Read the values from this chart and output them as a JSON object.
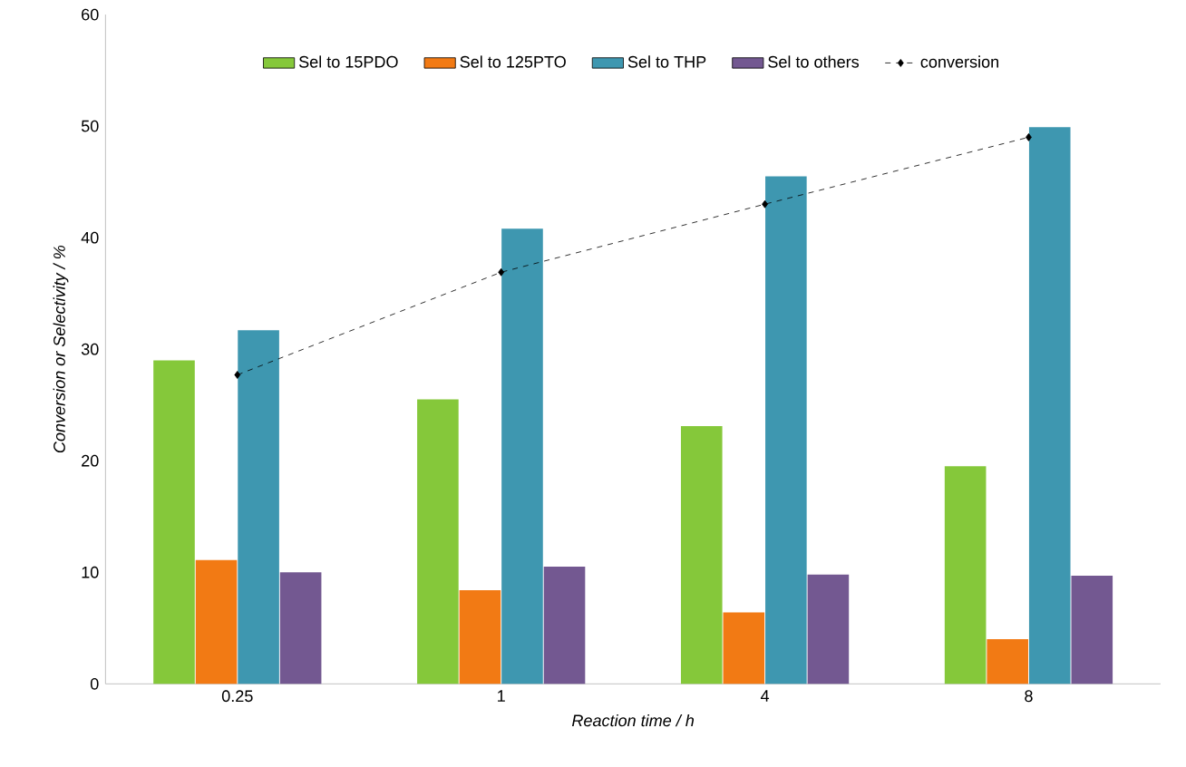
{
  "chart_data": {
    "type": "bar",
    "xlabel": "Reaction time / h",
    "ylabel": "Conversion or Selectivity / %",
    "categories": [
      "0.25",
      "1",
      "4",
      "8"
    ],
    "ylim": [
      0,
      60
    ],
    "yticks": [
      0,
      10,
      20,
      30,
      40,
      50,
      60
    ],
    "legend": "top",
    "grid": false,
    "series": [
      {
        "name": "Sel to 15PDO",
        "color": "#85c83a",
        "values": [
          29,
          25.5,
          23.1,
          19.5
        ]
      },
      {
        "name": "Sel to 125PTO",
        "color": "#f27a14",
        "values": [
          11.1,
          8.4,
          6.4,
          4
        ]
      },
      {
        "name": "Sel to THP",
        "color": "#3e97b0",
        "values": [
          31.7,
          40.8,
          45.5,
          49.9
        ]
      },
      {
        "name": "Sel to others",
        "color": "#735891",
        "values": [
          10,
          10.5,
          9.8,
          9.7
        ]
      },
      {
        "name": "conversion",
        "type": "line",
        "color": "#000000",
        "marker": "diamond",
        "line_style": "dashed",
        "values": [
          27.7,
          36.9,
          43,
          49
        ]
      }
    ]
  }
}
